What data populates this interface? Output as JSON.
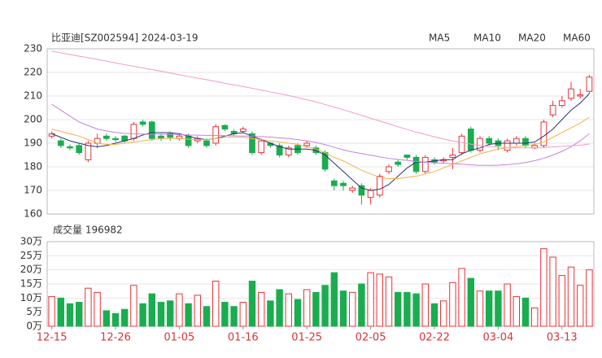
{
  "chart_data": [
    {
      "type": "candlestick",
      "title": "比亚迪[SZ002594] 2024-03-19",
      "up_color": "#e8333a",
      "down_color": "#1aad4f",
      "open": [
        193,
        191,
        188.5,
        189,
        183,
        190,
        193,
        192,
        193,
        192,
        199,
        199,
        193,
        194,
        192,
        193,
        191,
        191,
        190,
        197.5,
        195,
        195,
        194,
        186,
        190,
        189,
        185,
        189,
        189,
        188,
        186,
        174,
        173,
        170,
        172,
        167,
        168,
        178,
        182,
        185,
        184,
        178,
        183,
        182.5,
        184,
        186,
        196,
        187,
        192,
        191,
        187,
        190,
        192,
        188,
        189,
        202,
        206,
        209,
        210,
        212
      ],
      "high": [
        195,
        192,
        189.5,
        190,
        191,
        194,
        194,
        193,
        193.5,
        199,
        200,
        199.5,
        194,
        195,
        194,
        194,
        193,
        192,
        198,
        198,
        196,
        197,
        195,
        192,
        190.5,
        190,
        189,
        190,
        191,
        189,
        187,
        175,
        174,
        172,
        173,
        171,
        177,
        181,
        183,
        185,
        185,
        185,
        184,
        184,
        188,
        194,
        197,
        193,
        193,
        192,
        192,
        193,
        193,
        190,
        200,
        208,
        210,
        216,
        213,
        219
      ],
      "low": [
        192,
        188,
        187,
        185,
        182,
        188,
        191,
        190.5,
        190,
        191,
        197,
        191,
        191,
        191,
        191,
        188,
        190,
        188,
        189,
        195,
        193,
        194,
        185,
        185,
        188,
        184,
        184,
        185,
        188,
        185,
        178,
        170,
        170,
        169,
        164,
        164,
        167,
        177,
        180,
        183,
        177,
        177,
        181,
        181.5,
        179,
        185,
        186,
        186,
        189,
        187,
        186,
        189,
        188,
        187.5,
        188,
        201,
        205,
        208,
        209,
        211
      ],
      "close": [
        194,
        189,
        188,
        186,
        190,
        192,
        192,
        191.5,
        191,
        198,
        198,
        192,
        192,
        192.5,
        193,
        189,
        192,
        189,
        197,
        196,
        194,
        196,
        186,
        191,
        189,
        185,
        188,
        186,
        190,
        186,
        179,
        172,
        172,
        171,
        168,
        170,
        176,
        180,
        181,
        184,
        178,
        184,
        182,
        183,
        185,
        193,
        187,
        192,
        190,
        189,
        191,
        192,
        189,
        189,
        199,
        206,
        208,
        213,
        210.5,
        218
      ],
      "series": [
        {
          "name": "MA5",
          "color": "#2b3473",
          "values": [
            194,
            192.5,
            191,
            190,
            189,
            188.5,
            189,
            190,
            191,
            192,
            193.5,
            194.5,
            194.5,
            194.5,
            194,
            193,
            192,
            191.5,
            192,
            193,
            194,
            194.5,
            193,
            191.5,
            190,
            188.5,
            187.5,
            187.5,
            187.5,
            187,
            185,
            181.5,
            178,
            174.5,
            171,
            170,
            170.5,
            172.5,
            176,
            179.5,
            182,
            182,
            182.5,
            183,
            183,
            185.5,
            187,
            188,
            189.5,
            190,
            190,
            190,
            190,
            190.5,
            193,
            196,
            200,
            204,
            207,
            211
          ]
        },
        {
          "name": "MA10",
          "color": "#f3b14a",
          "values": [
            196,
            195,
            194,
            193,
            191.5,
            190,
            189.5,
            189.5,
            190,
            190.5,
            191,
            191.5,
            192,
            192,
            192,
            191.7,
            191.5,
            191.5,
            192,
            192.5,
            192.5,
            192.5,
            192,
            191.5,
            191,
            190.5,
            190,
            189.5,
            188.5,
            187.5,
            186,
            184,
            182.5,
            180.5,
            178.5,
            177,
            175.5,
            175,
            175,
            175.5,
            176,
            177,
            178,
            179.5,
            181,
            182.5,
            184,
            185.5,
            186.5,
            187.5,
            188,
            188.5,
            189,
            189.5,
            190.5,
            192.5,
            194.5,
            196.5,
            198.5,
            201
          ]
        },
        {
          "name": "MA20",
          "color": "#c383e0",
          "values": [
            206.5,
            204,
            201.5,
            199,
            197.5,
            196,
            195.2,
            194.6,
            194.2,
            194,
            193.9,
            193.8,
            193.8,
            193.7,
            193.6,
            193.5,
            193.4,
            193.3,
            193.3,
            193.2,
            193.1,
            193,
            193,
            192.8,
            192.6,
            192.3,
            192,
            191.5,
            191,
            190.3,
            189.4,
            188.3,
            187.2,
            186.3,
            185.6,
            184.9,
            184.2,
            183.6,
            183.1,
            182.7,
            182.3,
            182,
            181.7,
            181.5,
            181.3,
            181.1,
            180.8,
            180.6,
            180.6,
            180.7,
            180.9,
            181.3,
            181.8,
            182.6,
            183.6,
            185,
            186.5,
            188.5,
            191,
            194
          ]
        },
        {
          "name": "MA60",
          "color": "#f29ac8",
          "values": [
            229,
            228.3,
            227.6,
            226.9,
            226.2,
            225.5,
            224.8,
            224,
            223.3,
            222.6,
            221.9,
            221.2,
            220.5,
            219.8,
            219,
            218.3,
            217.6,
            216.9,
            216.2,
            215.4,
            214.7,
            214,
            213.3,
            212.5,
            211.7,
            211,
            210.2,
            209.3,
            208.4,
            207.5,
            206.4,
            205.3,
            204.2,
            203,
            201.8,
            200.6,
            199.4,
            198.2,
            197,
            195.8,
            194.7,
            193.7,
            192.7,
            191.8,
            191,
            190.3,
            189.6,
            189,
            188.6,
            188.3,
            188.1,
            188,
            188,
            188.1,
            188.2,
            188.4,
            188.6,
            188.9,
            189.2,
            189.6
          ]
        }
      ],
      "ylim": [
        160,
        230
      ],
      "yticks": [
        160,
        170,
        180,
        190,
        200,
        210,
        220,
        230
      ],
      "grid": true
    },
    {
      "type": "bar",
      "title": "成交量 196982",
      "categories": [
        "12-15",
        null,
        null,
        null,
        null,
        null,
        null,
        "12-26",
        null,
        null,
        null,
        null,
        null,
        null,
        "01-05",
        null,
        null,
        null,
        null,
        null,
        null,
        "01-16",
        null,
        null,
        null,
        null,
        null,
        null,
        "01-25",
        null,
        null,
        null,
        null,
        null,
        null,
        "02-05",
        null,
        null,
        null,
        null,
        null,
        null,
        "02-22",
        null,
        null,
        null,
        null,
        null,
        null,
        "03-04",
        null,
        null,
        null,
        null,
        null,
        null,
        "03-13",
        null,
        null,
        null
      ],
      "values": [
        10.5,
        10,
        8,
        8.5,
        13.5,
        12,
        5.5,
        4.5,
        6,
        14.5,
        8,
        11.5,
        8.5,
        9,
        11.5,
        8,
        11,
        7,
        16,
        8.5,
        7,
        8.5,
        16,
        12,
        9,
        13,
        11.5,
        9.5,
        13,
        12,
        14.5,
        19,
        12.5,
        12,
        15,
        19,
        18.5,
        17.5,
        12,
        12,
        11.5,
        15,
        8,
        9,
        15.5,
        20.5,
        17,
        12.5,
        12.5,
        12.5,
        15,
        10.5,
        10,
        6.5,
        27.5,
        24.5,
        18,
        21,
        14.5,
        20
      ],
      "ylim": [
        0,
        30
      ],
      "yticks": [
        {
          "value": 0,
          "label": "0万"
        },
        {
          "value": 5,
          "label": "5万"
        },
        {
          "value": 10,
          "label": "10万"
        },
        {
          "value": 15,
          "label": "15万"
        },
        {
          "value": 20,
          "label": "20万"
        },
        {
          "value": 25,
          "label": "25万"
        },
        {
          "value": 30,
          "label": "30万"
        }
      ],
      "grid": true
    }
  ]
}
